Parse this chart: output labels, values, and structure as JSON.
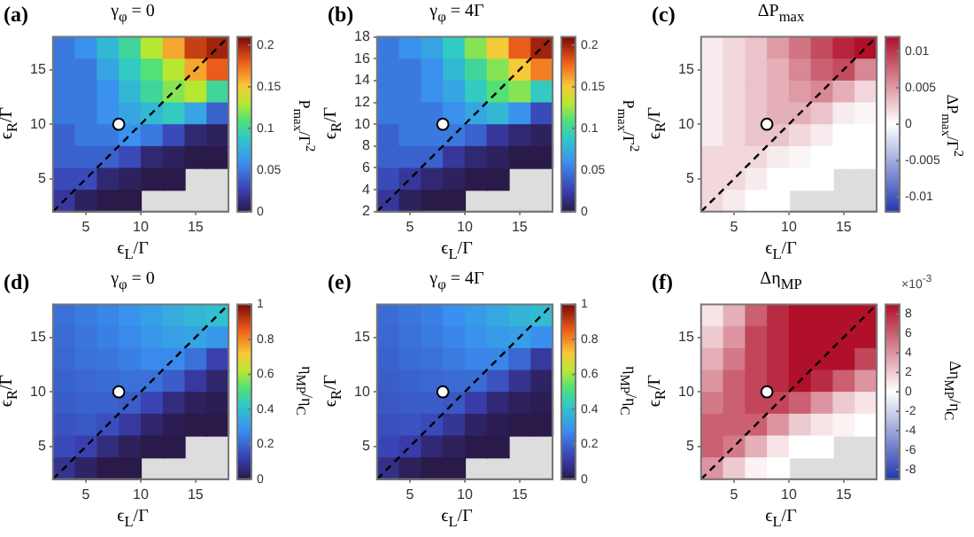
{
  "chart_data": [
    {
      "type": "heatmap",
      "title": "γ$_{φ}$ = 0",
      "xlabel": "ϵ$_{L}$/Γ",
      "ylabel": "ϵ$_{R}$/Γ",
      "clabel": "P$_{max}$/Γ$^{2}$",
      "annotations": [
        "(a)"
      ],
      "xlim": [
        2,
        18
      ],
      "xticks": [
        5,
        10,
        15
      ],
      "ylim": [
        2,
        18
      ],
      "yticks": [
        5,
        10,
        15
      ],
      "clim": [
        0,
        0.21
      ],
      "cticks": [
        0,
        0.05,
        0.1,
        0.15,
        0.2
      ],
      "cells": [
        [
          0.05,
          0.06,
          0.08,
          0.1,
          0.13,
          0.16,
          0.19,
          0.2
        ],
        [
          0.05,
          0.05,
          0.07,
          0.09,
          0.11,
          0.13,
          0.16,
          0.18
        ],
        [
          0.05,
          0.05,
          0.06,
          0.08,
          0.1,
          0.12,
          0.13,
          0.1
        ],
        [
          0.05,
          0.05,
          0.06,
          0.07,
          0.08,
          0.09,
          0.07,
          0.04
        ],
        [
          0.04,
          0.05,
          0.05,
          0.06,
          0.05,
          0.03,
          0.01,
          0.005
        ],
        [
          0.04,
          0.04,
          0.04,
          0.03,
          0.01,
          0.005,
          0,
          0
        ],
        [
          0.03,
          0.03,
          0.01,
          0.005,
          0,
          0,
          null,
          null
        ],
        [
          0.02,
          0.005,
          0,
          0,
          null,
          null,
          null,
          null
        ]
      ],
      "series": [
        {
          "type": "line",
          "x": [
            2,
            18
          ],
          "values": [
            2,
            18
          ],
          "color": "#000000",
          "line_style": "dashed"
        },
        {
          "type": "scatter",
          "x": [
            8
          ],
          "values": [
            10
          ],
          "color": "#ffffff",
          "marker": "circle"
        }
      ]
    },
    {
      "type": "heatmap",
      "title": "γ$_{φ}$ = 4Γ",
      "xlabel": "ϵ$_{L}$/Γ",
      "ylabel": "ϵ$_{R}$/Γ",
      "clabel": "P$_{max}$/Γ$^{2}$",
      "annotations": [
        "(b)"
      ],
      "xlim": [
        2,
        18
      ],
      "xticks": [
        5,
        10,
        15
      ],
      "ylim": [
        2,
        18
      ],
      "yticks": [
        2,
        4,
        6,
        8,
        10,
        12,
        14,
        16,
        18
      ],
      "clim": [
        0,
        0.21
      ],
      "cticks": [
        0,
        0.05,
        0.1,
        0.15,
        0.2
      ],
      "cells": [
        [
          0.05,
          0.06,
          0.07,
          0.09,
          0.12,
          0.15,
          0.18,
          0.2
        ],
        [
          0.05,
          0.05,
          0.06,
          0.08,
          0.1,
          0.12,
          0.15,
          0.17
        ],
        [
          0.05,
          0.05,
          0.06,
          0.07,
          0.09,
          0.11,
          0.12,
          0.09
        ],
        [
          0.05,
          0.05,
          0.05,
          0.06,
          0.07,
          0.08,
          0.06,
          0.03
        ],
        [
          0.04,
          0.05,
          0.05,
          0.05,
          0.04,
          0.02,
          0.01,
          0.005
        ],
        [
          0.04,
          0.04,
          0.04,
          0.02,
          0.01,
          0.005,
          0,
          0
        ],
        [
          0.03,
          0.02,
          0.01,
          0.005,
          0,
          0,
          null,
          null
        ],
        [
          0.02,
          0.005,
          0,
          0,
          null,
          null,
          null,
          null
        ]
      ],
      "series": [
        {
          "type": "line",
          "x": [
            2,
            18
          ],
          "values": [
            2,
            18
          ],
          "color": "#000000",
          "line_style": "dashed"
        },
        {
          "type": "scatter",
          "x": [
            8
          ],
          "values": [
            10
          ],
          "color": "#ffffff",
          "marker": "circle"
        }
      ]
    },
    {
      "type": "heatmap",
      "title": "ΔP$_{max}$",
      "xlabel": "ϵ$_{L}$/Γ",
      "ylabel": "ϵ$_{R}$/Γ",
      "clabel": "ΔP$_{max}$/Γ$^{2}$",
      "annotations": [
        "(c)"
      ],
      "xlim": [
        2,
        18
      ],
      "xticks": [
        5,
        10,
        15
      ],
      "ylim": [
        2,
        18
      ],
      "yticks": [
        5,
        10,
        15
      ],
      "clim": [
        -0.012,
        0.012
      ],
      "cticks": [
        -0.01,
        -0.005,
        0,
        0.005,
        0.01
      ],
      "cells": [
        [
          0.001,
          0.002,
          0.003,
          0.005,
          0.007,
          0.009,
          0.011,
          0.012
        ],
        [
          0.001,
          0.002,
          0.003,
          0.004,
          0.006,
          0.008,
          0.009,
          0.006
        ],
        [
          0.001,
          0.002,
          0.003,
          0.004,
          0.005,
          0.006,
          0.004,
          0.002
        ],
        [
          0.001,
          0.002,
          0.003,
          0.004,
          0.004,
          0.003,
          0.001,
          0.0005
        ],
        [
          0.001,
          0.002,
          0.003,
          0.003,
          0.002,
          0.001,
          0,
          0
        ],
        [
          0.002,
          0.002,
          0.002,
          0.001,
          0.0005,
          0,
          0,
          0
        ],
        [
          0.002,
          0.002,
          0.001,
          0,
          0,
          0,
          null,
          null
        ],
        [
          0.002,
          0.001,
          0,
          0,
          null,
          null,
          null,
          null
        ]
      ],
      "series": [
        {
          "type": "line",
          "x": [
            2,
            18
          ],
          "values": [
            2,
            18
          ],
          "color": "#000000",
          "line_style": "dashed"
        },
        {
          "type": "scatter",
          "x": [
            8
          ],
          "values": [
            10
          ],
          "color": "#ffffff",
          "marker": "circle"
        }
      ]
    },
    {
      "type": "heatmap",
      "title": "γ$_{φ}$ = 0",
      "xlabel": "ϵ$_{L}$/Γ",
      "ylabel": "ϵ$_{R}$/Γ",
      "clabel": "η$_{MP}$/η$_{C}$",
      "annotations": [
        "(d)"
      ],
      "xlim": [
        2,
        18
      ],
      "xticks": [
        5,
        10,
        15
      ],
      "ylim": [
        2,
        18
      ],
      "yticks": [
        5,
        10,
        15
      ],
      "clim": [
        0,
        1
      ],
      "cticks": [
        0,
        0.2,
        0.4,
        0.6,
        0.8,
        1
      ],
      "cells": [
        [
          0.22,
          0.24,
          0.26,
          0.29,
          0.32,
          0.35,
          0.38,
          0.4
        ],
        [
          0.21,
          0.23,
          0.25,
          0.27,
          0.3,
          0.32,
          0.33,
          0.3
        ],
        [
          0.2,
          0.22,
          0.23,
          0.25,
          0.27,
          0.27,
          0.22,
          0.12
        ],
        [
          0.19,
          0.2,
          0.21,
          0.22,
          0.22,
          0.18,
          0.1,
          0.04
        ],
        [
          0.18,
          0.19,
          0.19,
          0.18,
          0.13,
          0.06,
          0.02,
          0.01
        ],
        [
          0.16,
          0.17,
          0.15,
          0.1,
          0.04,
          0.01,
          0,
          0
        ],
        [
          0.14,
          0.12,
          0.06,
          0.02,
          0,
          0,
          null,
          null
        ],
        [
          0.08,
          0.03,
          0,
          0,
          null,
          null,
          null,
          null
        ]
      ],
      "series": [
        {
          "type": "line",
          "x": [
            2,
            18
          ],
          "values": [
            2,
            18
          ],
          "color": "#000000",
          "line_style": "dashed"
        },
        {
          "type": "scatter",
          "x": [
            8
          ],
          "values": [
            10
          ],
          "color": "#ffffff",
          "marker": "circle"
        }
      ]
    },
    {
      "type": "heatmap",
      "title": "γ$_{φ}$ = 4Γ",
      "xlabel": "ϵ$_{L}$/Γ",
      "ylabel": "ϵ$_{R}$/Γ",
      "clabel": "η$_{MP}$/η$_{C}$",
      "annotations": [
        "(e)"
      ],
      "xlim": [
        2,
        18
      ],
      "xticks": [
        5,
        10,
        15
      ],
      "ylim": [
        2,
        18
      ],
      "yticks": [
        5,
        10,
        15
      ],
      "clim": [
        0,
        1
      ],
      "cticks": [
        0,
        0.2,
        0.4,
        0.6,
        0.8,
        1
      ],
      "cells": [
        [
          0.21,
          0.23,
          0.25,
          0.28,
          0.31,
          0.34,
          0.37,
          0.39
        ],
        [
          0.2,
          0.22,
          0.24,
          0.26,
          0.29,
          0.31,
          0.32,
          0.28
        ],
        [
          0.19,
          0.21,
          0.22,
          0.24,
          0.26,
          0.26,
          0.2,
          0.1
        ],
        [
          0.18,
          0.19,
          0.2,
          0.21,
          0.21,
          0.16,
          0.08,
          0.03
        ],
        [
          0.17,
          0.18,
          0.18,
          0.17,
          0.11,
          0.05,
          0.02,
          0.01
        ],
        [
          0.15,
          0.16,
          0.14,
          0.09,
          0.03,
          0.01,
          0,
          0
        ],
        [
          0.13,
          0.11,
          0.05,
          0.02,
          0,
          0,
          null,
          null
        ],
        [
          0.07,
          0.02,
          0,
          0,
          null,
          null,
          null,
          null
        ]
      ],
      "series": [
        {
          "type": "line",
          "x": [
            2,
            18
          ],
          "values": [
            2,
            18
          ],
          "color": "#000000",
          "line_style": "dashed"
        },
        {
          "type": "scatter",
          "x": [
            8
          ],
          "values": [
            10
          ],
          "color": "#ffffff",
          "marker": "circle"
        }
      ]
    },
    {
      "type": "heatmap",
      "title": "Δη$_{MP}$",
      "xlabel": "ϵ$_{L}$/Γ",
      "ylabel": "ϵ$_{R}$/Γ",
      "clabel": "Δη$_{MP}$/η$_{C}$",
      "annotations": [
        "(f)",
        "×10$^{-3}$"
      ],
      "xlim": [
        2,
        18
      ],
      "xticks": [
        5,
        10,
        15
      ],
      "ylim": [
        2,
        18
      ],
      "yticks": [
        5,
        10,
        15
      ],
      "clim": [
        -9,
        9
      ],
      "cticks": [
        -8,
        -6,
        -4,
        -2,
        0,
        2,
        4,
        6,
        8
      ],
      "cells": [
        [
          1,
          3,
          6,
          8,
          9,
          9,
          9,
          9
        ],
        [
          2,
          4,
          7,
          8,
          9,
          9,
          9,
          9
        ],
        [
          3,
          5,
          7,
          8,
          9,
          9,
          9,
          7
        ],
        [
          4,
          6,
          7,
          8,
          9,
          8,
          6,
          4
        ],
        [
          5,
          6,
          7,
          7,
          6,
          4,
          2,
          1
        ],
        [
          6,
          6,
          6,
          4,
          2,
          1,
          0.5,
          0
        ],
        [
          6,
          5,
          3,
          1,
          0,
          0,
          null,
          null
        ],
        [
          4,
          2,
          0.5,
          0,
          null,
          null,
          null,
          null
        ]
      ],
      "series": [
        {
          "type": "line",
          "x": [
            2,
            18
          ],
          "values": [
            2,
            18
          ],
          "color": "#000000",
          "line_style": "dashed"
        },
        {
          "type": "scatter",
          "x": [
            8
          ],
          "values": [
            10
          ],
          "color": "#ffffff",
          "marker": "circle"
        }
      ]
    }
  ]
}
